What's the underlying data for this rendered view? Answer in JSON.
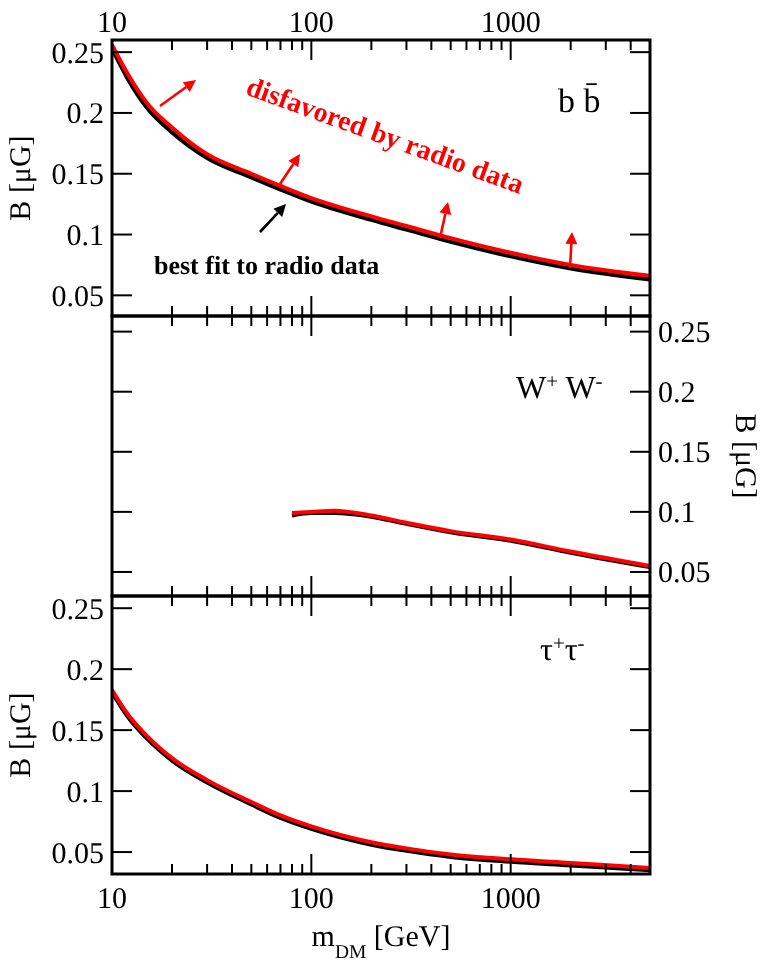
{
  "chart_data": [
    {
      "type": "line",
      "log": "x",
      "xlim": [
        10,
        5000
      ],
      "ylim": [
        0.033,
        0.26
      ],
      "ylabel": "B [μG]",
      "xticks": [
        10,
        {
          "value": 20,
          "label": null
        },
        {
          "value": 30,
          "label": null
        },
        {
          "value": 40,
          "label": null
        },
        {
          "value": 50,
          "label": null
        },
        {
          "value": 60,
          "label": null
        },
        {
          "value": 70,
          "label": null
        },
        {
          "value": 80,
          "label": null
        },
        {
          "value": 90,
          "label": null
        },
        100,
        {
          "value": 200,
          "label": null
        },
        {
          "value": 300,
          "label": null
        },
        {
          "value": 400,
          "label": null
        },
        {
          "value": 500,
          "label": null
        },
        {
          "value": 600,
          "label": null
        },
        {
          "value": 700,
          "label": null
        },
        {
          "value": 800,
          "label": null
        },
        {
          "value": 900,
          "label": null
        },
        1000,
        {
          "value": 2000,
          "label": null
        },
        {
          "value": 3000,
          "label": null
        },
        {
          "value": 4000,
          "label": null
        },
        {
          "value": 5000,
          "label": null
        }
      ],
      "yticks": [
        0.05,
        0.1,
        0.15,
        0.2,
        0.25
      ],
      "x": [
        10,
        12,
        15,
        20,
        30,
        50,
        70,
        100,
        200,
        300,
        500,
        1000,
        2000,
        5000
      ],
      "series": [
        {
          "color": "#ff0000",
          "values": [
            0.256,
            0.232,
            0.208,
            0.188,
            0.166,
            0.15,
            0.14,
            0.13,
            0.115,
            0.107,
            0.097,
            0.085,
            0.075,
            0.066
          ]
        },
        {
          "color": "#000000",
          "values": [
            0.253,
            0.228,
            0.204,
            0.184,
            0.163,
            0.147,
            0.137,
            0.127,
            0.112,
            0.104,
            0.094,
            0.082,
            0.072,
            0.063
          ]
        }
      ],
      "annotations": [
        "disfavored by radio data",
        "best fit to radio data",
        "b b̄"
      ]
    },
    {
      "type": "line",
      "log": "x",
      "xlim": [
        10,
        5000
      ],
      "y2lim": [
        0.03,
        0.263
      ],
      "y2label": "B [μG]",
      "tick_labels": "y",
      "xticks": [
        10,
        {
          "value": 20,
          "label": null
        },
        {
          "value": 30,
          "label": null
        },
        {
          "value": 40,
          "label": null
        },
        {
          "value": 50,
          "label": null
        },
        {
          "value": 60,
          "label": null
        },
        {
          "value": 70,
          "label": null
        },
        {
          "value": 80,
          "label": null
        },
        {
          "value": 90,
          "label": null
        },
        100,
        {
          "value": 200,
          "label": null
        },
        {
          "value": 300,
          "label": null
        },
        {
          "value": 400,
          "label": null
        },
        {
          "value": 500,
          "label": null
        },
        {
          "value": 600,
          "label": null
        },
        {
          "value": 700,
          "label": null
        },
        {
          "value": 800,
          "label": null
        },
        {
          "value": 900,
          "label": null
        },
        1000,
        {
          "value": 2000,
          "label": null
        },
        {
          "value": 3000,
          "label": null
        },
        {
          "value": 4000,
          "label": null
        },
        {
          "value": 5000,
          "label": null
        }
      ],
      "y2ticks": [
        0.05,
        0.1,
        0.15,
        0.2,
        0.25
      ],
      "x": [
        80,
        100,
        130,
        200,
        300,
        500,
        1000,
        2000,
        5000
      ],
      "series": [
        {
          "color": "#ff0000",
          "axis": "y2",
          "values": [
            0.099,
            0.1,
            0.101,
            0.097,
            0.091,
            0.084,
            0.077,
            0.067,
            0.055
          ]
        },
        {
          "color": "#000000",
          "axis": "y2",
          "values": [
            0.097,
            0.099,
            0.099,
            0.096,
            0.09,
            0.083,
            0.076,
            0.066,
            0.054
          ]
        }
      ],
      "annotations": [
        "W$^{+}$ W$^{-}$"
      ]
    },
    {
      "type": "line",
      "log": "x",
      "xlim": [
        10,
        5000
      ],
      "ylim": [
        0.032,
        0.26
      ],
      "ylabel": "B [μG]",
      "xlabel": "m$_{DM}$ [GeV]",
      "xticks": [
        10,
        {
          "value": 20,
          "label": null
        },
        {
          "value": 30,
          "label": null
        },
        {
          "value": 40,
          "label": null
        },
        {
          "value": 50,
          "label": null
        },
        {
          "value": 60,
          "label": null
        },
        {
          "value": 70,
          "label": null
        },
        {
          "value": 80,
          "label": null
        },
        {
          "value": 90,
          "label": null
        },
        100,
        {
          "value": 200,
          "label": null
        },
        {
          "value": 300,
          "label": null
        },
        {
          "value": 400,
          "label": null
        },
        {
          "value": 500,
          "label": null
        },
        {
          "value": 600,
          "label": null
        },
        {
          "value": 700,
          "label": null
        },
        {
          "value": 800,
          "label": null
        },
        {
          "value": 900,
          "label": null
        },
        1000,
        {
          "value": 2000,
          "label": null
        },
        {
          "value": 3000,
          "label": null
        },
        {
          "value": 4000,
          "label": null
        },
        {
          "value": 5000,
          "label": null
        }
      ],
      "yticks": [
        0.05,
        0.1,
        0.15,
        0.2,
        0.25
      ],
      "x": [
        10,
        12,
        15,
        20,
        30,
        50,
        70,
        100,
        200,
        300,
        500,
        1000,
        2000,
        5000
      ],
      "series": [
        {
          "color": "#ff0000",
          "values": [
            0.183,
            0.163,
            0.145,
            0.127,
            0.109,
            0.091,
            0.08,
            0.071,
            0.058,
            0.053,
            0.048,
            0.044,
            0.041,
            0.037
          ]
        },
        {
          "color": "#000000",
          "values": [
            0.181,
            0.161,
            0.143,
            0.125,
            0.107,
            0.089,
            0.078,
            0.069,
            0.056,
            0.051,
            0.046,
            0.042,
            0.039,
            0.035
          ]
        }
      ],
      "annotations": [
        "τ$^{+}$τ$^{-}$"
      ]
    }
  ]
}
